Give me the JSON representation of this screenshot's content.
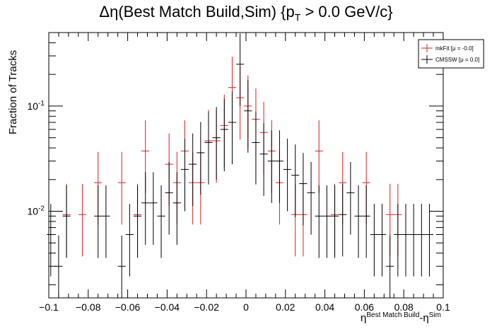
{
  "chart_data": {
    "type": "scatter",
    "title_prefix": "Δη(Best Match Build,Sim) {p",
    "title_sub": "T",
    "title_suffix": " > 0.0 GeV/c}",
    "ylabel": "Fraction of Tracks",
    "xlabel_main": "η",
    "xlabel_sup1": "Best Match Build",
    "xlabel_mid": "-η",
    "xlabel_sup2": "Sim",
    "xlim": [
      -0.1,
      0.1
    ],
    "ylim": [
      0.0015,
      0.5
    ],
    "yscale": "log",
    "xticks": [
      "−0.1",
      "−0.08",
      "−0.06",
      "−0.04",
      "−0.02",
      "0",
      "0.02",
      "0.04",
      "0.06",
      "0.08",
      "0.1"
    ],
    "yticks": [
      "10^-2",
      "10^-1"
    ],
    "legend": [
      {
        "label": "mkFit  [μ = -0.0]",
        "color": "#d62020"
      },
      {
        "label": "CMSSW  [μ =  0.0]",
        "color": "#000000"
      }
    ],
    "series": [
      {
        "name": "mkFit  [μ = -0.0]",
        "color": "#d62020",
        "x": [
          -0.099,
          -0.095,
          -0.091,
          -0.087,
          -0.083,
          -0.079,
          -0.075,
          -0.071,
          -0.067,
          -0.063,
          -0.059,
          -0.055,
          -0.051,
          -0.047,
          -0.043,
          -0.039,
          -0.035,
          -0.031,
          -0.027,
          -0.023,
          -0.019,
          -0.015,
          -0.011,
          -0.007,
          -0.003,
          0.001,
          0.005,
          0.009,
          0.013,
          0.017,
          0.021,
          0.025,
          0.029,
          0.033,
          0.037,
          0.041,
          0.045,
          0.049,
          0.053,
          0.057,
          0.061,
          0.065,
          0.069,
          0.073,
          0.077,
          0.081,
          0.085,
          0.089,
          0.093,
          0.097
        ],
        "y": [
          0,
          0,
          0.0093,
          0,
          0.0093,
          0,
          0.0187,
          0,
          0,
          0.0187,
          0,
          0.0093,
          0.0374,
          0,
          0,
          0.028,
          0.0187,
          0.0374,
          0.0187,
          0.0187,
          0.0467,
          0.0467,
          0.0654,
          0.15,
          0.12,
          0.1,
          0.075,
          0.056,
          0.0374,
          0.0187,
          0,
          0.0093,
          0.0093,
          0,
          0.0374,
          0,
          0.0093,
          0.0187,
          0,
          0,
          0.0187,
          0,
          0,
          0.0093,
          0.0093,
          0,
          0,
          0,
          0,
          0
        ]
      },
      {
        "name": "CMSSW  [μ =  0.0]",
        "color": "#000000",
        "x": [
          -0.099,
          -0.095,
          -0.091,
          -0.087,
          -0.083,
          -0.079,
          -0.075,
          -0.071,
          -0.067,
          -0.063,
          -0.059,
          -0.055,
          -0.051,
          -0.047,
          -0.043,
          -0.039,
          -0.035,
          -0.031,
          -0.027,
          -0.023,
          -0.019,
          -0.015,
          -0.011,
          -0.007,
          -0.003,
          0.001,
          0.005,
          0.009,
          0.013,
          0.017,
          0.021,
          0.025,
          0.029,
          0.033,
          0.037,
          0.041,
          0.045,
          0.049,
          0.053,
          0.057,
          0.061,
          0.065,
          0.069,
          0.073,
          0.077,
          0.081,
          0.085,
          0.089,
          0.093,
          0.097
        ],
        "y": [
          0.006,
          0.003,
          0.009,
          0,
          0,
          0,
          0.009,
          0.009,
          0,
          0.003,
          0.006,
          0.009,
          0.012,
          0.012,
          0.009,
          0.015,
          0.012,
          0.025,
          0.028,
          0.036,
          0.045,
          0.05,
          0.06,
          0.07,
          0.25,
          0.09,
          0.045,
          0.035,
          0.03,
          0.03,
          0.025,
          0.022,
          0.0183,
          0.015,
          0.009,
          0.009,
          0.009,
          0.0093,
          0.015,
          0.009,
          0.009,
          0.006,
          0.006,
          0.003,
          0.006,
          0.006,
          0.006,
          0.006,
          0.006,
          0
        ]
      }
    ]
  }
}
